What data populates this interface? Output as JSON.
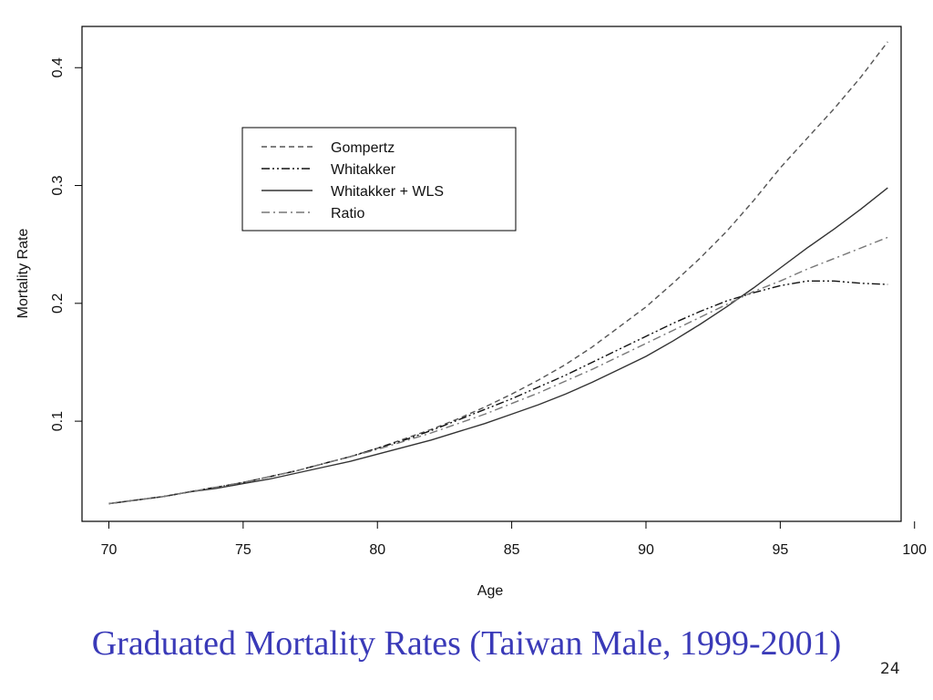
{
  "caption": "Graduated Mortality Rates (Taiwan Male, 1999-2001)",
  "page_number": "24",
  "chart_data": {
    "type": "line",
    "title": "",
    "xlabel": "Age",
    "ylabel": "Mortality Rate",
    "xlim": [
      69,
      99.5
    ],
    "ylim": [
      0.015,
      0.435
    ],
    "xticks": [
      70,
      75,
      80,
      85,
      90,
      95,
      100
    ],
    "yticks": [
      0.1,
      0.2,
      0.3,
      0.4
    ],
    "ytick_labels": [
      "0.1",
      "0.2",
      "0.3",
      "0.4"
    ],
    "grid": false,
    "legend_position": "upper-left",
    "x": [
      70,
      71,
      72,
      73,
      74,
      75,
      76,
      77,
      78,
      79,
      80,
      81,
      82,
      83,
      84,
      85,
      86,
      87,
      88,
      89,
      90,
      91,
      92,
      93,
      94,
      95,
      96,
      97,
      98,
      99
    ],
    "series": [
      {
        "name": "Gompertz",
        "dash": "dashed",
        "color": "#555555",
        "values": [
          0.03,
          0.033,
          0.036,
          0.04,
          0.044,
          0.048,
          0.053,
          0.058,
          0.064,
          0.07,
          0.077,
          0.085,
          0.093,
          0.102,
          0.112,
          0.123,
          0.135,
          0.148,
          0.163,
          0.18,
          0.197,
          0.217,
          0.238,
          0.261,
          0.287,
          0.315,
          0.34,
          0.365,
          0.392,
          0.422
        ]
      },
      {
        "name": "Whitakker",
        "dash": "dash-dot-dot",
        "color": "#111111",
        "values": [
          0.03,
          0.033,
          0.036,
          0.04,
          0.044,
          0.048,
          0.053,
          0.058,
          0.064,
          0.07,
          0.077,
          0.084,
          0.092,
          0.101,
          0.11,
          0.119,
          0.129,
          0.139,
          0.15,
          0.161,
          0.172,
          0.183,
          0.193,
          0.202,
          0.209,
          0.215,
          0.219,
          0.219,
          0.217,
          0.216
        ]
      },
      {
        "name": "Whitakker + WLS",
        "dash": "solid",
        "color": "#333333",
        "values": [
          0.03,
          0.033,
          0.036,
          0.04,
          0.043,
          0.047,
          0.051,
          0.056,
          0.061,
          0.066,
          0.072,
          0.078,
          0.084,
          0.091,
          0.098,
          0.106,
          0.114,
          0.123,
          0.133,
          0.144,
          0.155,
          0.168,
          0.182,
          0.197,
          0.213,
          0.23,
          0.247,
          0.263,
          0.28,
          0.298
        ]
      },
      {
        "name": "Ratio",
        "dash": "dash-dot",
        "color": "#777777",
        "values": [
          0.03,
          0.033,
          0.036,
          0.04,
          0.044,
          0.048,
          0.053,
          0.058,
          0.064,
          0.07,
          0.076,
          0.083,
          0.09,
          0.098,
          0.106,
          0.115,
          0.124,
          0.134,
          0.144,
          0.155,
          0.166,
          0.177,
          0.188,
          0.199,
          0.21,
          0.219,
          0.229,
          0.238,
          0.247,
          0.256
        ]
      }
    ]
  }
}
